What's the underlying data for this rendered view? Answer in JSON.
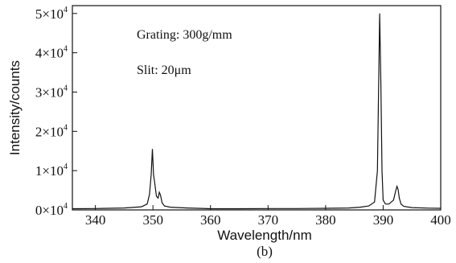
{
  "chart_data": {
    "type": "line",
    "xlabel": "Wavelength/nm",
    "ylabel": "Intensity/counts",
    "caption": "(b)",
    "xlim": [
      336,
      400
    ],
    "ylim": [
      0,
      52000
    ],
    "xticks": [
      340,
      350,
      360,
      370,
      380,
      390,
      400
    ],
    "yticks": [
      {
        "value": 0,
        "label": "0×10",
        "exp": "4"
      },
      {
        "value": 10000,
        "label": "1×10",
        "exp": "4"
      },
      {
        "value": 20000,
        "label": "2×10",
        "exp": "4"
      },
      {
        "value": 30000,
        "label": "3×10",
        "exp": "4"
      },
      {
        "value": 40000,
        "label": "4×10",
        "exp": "4"
      },
      {
        "value": 50000,
        "label": "5×10",
        "exp": "4"
      }
    ],
    "annotations": [
      "Grating: 300g/mm",
      "Slit: 20μm"
    ],
    "series": [
      {
        "x": [
          336,
          340,
          345,
          348,
          349.0,
          349.4,
          349.7,
          349.9,
          350.1,
          350.3,
          350.6,
          350.9,
          351.1,
          351.3,
          351.6,
          352.0,
          353,
          356,
          360,
          365,
          370,
          375,
          380,
          384,
          386,
          387.5,
          388.5,
          389.0,
          389.2,
          389.4,
          389.6,
          389.8,
          390.0,
          390.4,
          391.0,
          391.8,
          392.2,
          392.4,
          392.6,
          392.8,
          393.1,
          393.6,
          395,
          398,
          400
        ],
        "y": [
          300,
          350,
          500,
          800,
          1500,
          4000,
          9000,
          15500,
          9000,
          7000,
          3500,
          3000,
          4500,
          3800,
          1800,
          1000,
          700,
          500,
          300,
          300,
          350,
          350,
          400,
          500,
          700,
          1000,
          2000,
          10000,
          30000,
          50000,
          32000,
          10000,
          2500,
          1500,
          1500,
          2500,
          5000,
          6000,
          5200,
          3000,
          1500,
          900,
          600,
          450,
          400
        ]
      }
    ]
  }
}
